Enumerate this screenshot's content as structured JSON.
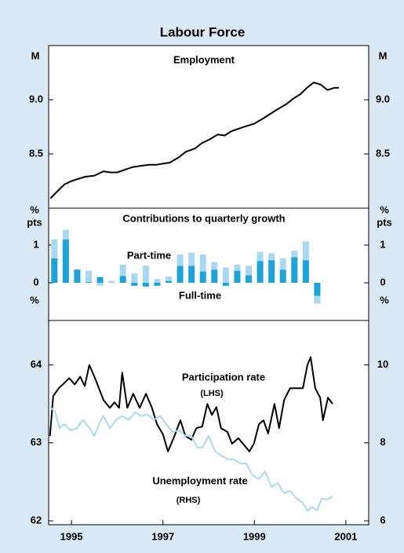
{
  "title": "Labour Force",
  "chart_data": [
    {
      "type": "line",
      "title": "Employment",
      "ylabel": "M",
      "ylim": [
        8.0,
        9.5
      ],
      "yticks": [
        8.5,
        {
          "value": 9,
          "label": "9.0"
        }
      ],
      "series": [
        {
          "color": "#000000",
          "x": [
            1994.54,
            1994.7,
            1994.85,
            1995.0,
            1995.15,
            1995.3,
            1995.5,
            1995.7,
            1995.85,
            1996.0,
            1996.2,
            1996.35,
            1996.5,
            1996.7,
            1996.85,
            1997.0,
            1997.15,
            1997.35,
            1997.5,
            1997.7,
            1997.85,
            1998.0,
            1998.2,
            1998.35,
            1998.5,
            1998.7,
            1998.85,
            1999.0,
            1999.2,
            1999.35,
            1999.5,
            1999.7,
            1999.85,
            2000.0,
            2000.15,
            2000.3,
            2000.45,
            2000.6,
            2000.75,
            2000.85
          ],
          "values": [
            8.09,
            8.16,
            8.22,
            8.25,
            8.27,
            8.29,
            8.3,
            8.34,
            8.33,
            8.33,
            8.36,
            8.38,
            8.39,
            8.4,
            8.4,
            8.41,
            8.42,
            8.47,
            8.52,
            8.55,
            8.6,
            8.63,
            8.68,
            8.67,
            8.71,
            8.74,
            8.76,
            8.78,
            8.83,
            8.87,
            8.91,
            8.96,
            9.01,
            9.05,
            9.11,
            9.16,
            9.14,
            9.09,
            9.11,
            9.11
          ]
        }
      ]
    },
    {
      "type": "bar",
      "title": "Contributions to quarterly growth",
      "ylabel": [
        "%",
        "pts"
      ],
      "ylim": [
        -1,
        2
      ],
      "yticks": [
        0,
        1
      ],
      "stacked": true,
      "x": [
        1994.625,
        1994.875,
        1995.125,
        1995.375,
        1995.625,
        1995.875,
        1996.125,
        1996.375,
        1996.625,
        1996.875,
        1997.125,
        1997.375,
        1997.625,
        1997.875,
        1998.125,
        1998.375,
        1998.625,
        1998.875,
        1999.125,
        1999.375,
        1999.625,
        1999.875,
        2000.125,
        2000.375
      ],
      "series": [
        {
          "name": "Full-time",
          "color": "#1ba3dc",
          "values": [
            0.65,
            1.15,
            0.35,
            0.02,
            0.15,
            0,
            0.18,
            -0.08,
            -0.1,
            -0.08,
            0.05,
            0.45,
            0.45,
            0.3,
            0.35,
            -0.08,
            0.32,
            0.2,
            0.58,
            0.6,
            0.35,
            0.68,
            0.6,
            -0.35
          ]
        },
        {
          "name": "Part-time",
          "color": "#a9d9f2",
          "values": [
            0.5,
            0.25,
            0,
            0.3,
            -0.08,
            0.05,
            0.3,
            0.25,
            0.45,
            0.1,
            0.12,
            0.3,
            0.35,
            0.45,
            0.2,
            0.4,
            0.16,
            0.25,
            0.24,
            0.18,
            0.3,
            0.17,
            0.5,
            -0.2
          ]
        }
      ]
    },
    {
      "type": "line",
      "ylabel": "%",
      "xlim": [
        1994.5,
        2001.5
      ],
      "xticks": [
        1995,
        1997,
        1999,
        2001
      ],
      "ylim": [
        61.95,
        64.55
      ],
      "yticks": [
        62,
        63,
        64
      ],
      "y2lim": [
        5.9,
        11.1
      ],
      "y2ticks": [
        6,
        8,
        10
      ],
      "series": [
        {
          "name": "Participation rate",
          "side": "(LHS)",
          "color": "#000000",
          "x": [
            1994.53,
            1994.6,
            1994.72,
            1994.81,
            1994.95,
            1995.07,
            1995.19,
            1995.29,
            1995.39,
            1995.5,
            1995.6,
            1995.7,
            1995.84,
            1995.94,
            1996.04,
            1996.11,
            1996.22,
            1996.35,
            1996.49,
            1996.63,
            1996.76,
            1996.87,
            1997.0,
            1997.11,
            1997.24,
            1997.38,
            1997.49,
            1997.62,
            1997.73,
            1997.86,
            1997.97,
            1998.07,
            1998.17,
            1998.27,
            1998.41,
            1998.51,
            1998.65,
            1998.75,
            1998.89,
            1998.99,
            1999.1,
            1999.2,
            1999.3,
            1999.44,
            1999.54,
            1999.65,
            1999.78,
            1999.92,
            2000.06,
            2000.16,
            2000.23,
            2000.33,
            2000.44,
            2000.5,
            2000.61,
            2000.71
          ],
          "values": [
            63.09,
            63.6,
            63.7,
            63.75,
            63.83,
            63.75,
            63.85,
            63.73,
            64.0,
            63.85,
            63.7,
            63.55,
            63.45,
            63.52,
            63.45,
            63.9,
            63.45,
            63.63,
            63.45,
            63.63,
            63.45,
            63.24,
            63.11,
            62.89,
            63.07,
            63.29,
            63.09,
            63.04,
            63.19,
            63.21,
            63.5,
            63.36,
            63.46,
            63.19,
            63.14,
            62.99,
            63.06,
            62.99,
            62.89,
            62.99,
            63.24,
            63.29,
            63.12,
            63.5,
            63.19,
            63.55,
            63.7,
            63.7,
            63.7,
            64.0,
            64.1,
            63.7,
            63.58,
            63.29,
            63.58,
            63.5
          ]
        },
        {
          "name": "Unemployment rate",
          "side": "(RHS)",
          "color": "#a9d9f2",
          "axis": "y2",
          "x": [
            1994.53,
            1994.64,
            1994.74,
            1994.84,
            1994.98,
            1995.12,
            1995.25,
            1995.39,
            1995.5,
            1995.6,
            1995.7,
            1995.84,
            1995.98,
            1996.11,
            1996.25,
            1996.39,
            1996.52,
            1996.66,
            1996.8,
            1996.94,
            1997.07,
            1997.21,
            1997.35,
            1997.49,
            1997.62,
            1997.76,
            1997.86,
            1998.0,
            1998.14,
            1998.27,
            1998.41,
            1998.55,
            1998.69,
            1998.82,
            1998.96,
            1999.1,
            1999.23,
            1999.37,
            1999.51,
            1999.65,
            1999.78,
            1999.92,
            2000.06,
            2000.16,
            2000.26,
            2000.37,
            2000.47,
            2000.61,
            2000.71
          ],
          "values": [
            8.93,
            8.79,
            8.38,
            8.48,
            8.32,
            8.38,
            8.59,
            8.38,
            8.18,
            8.48,
            8.69,
            8.38,
            8.59,
            8.69,
            8.59,
            8.79,
            8.69,
            8.73,
            8.59,
            8.69,
            8.48,
            8.28,
            8.32,
            8.18,
            8.18,
            7.88,
            7.88,
            8.18,
            7.78,
            7.68,
            7.58,
            7.58,
            7.47,
            7.47,
            7.17,
            7.07,
            7.27,
            6.87,
            6.97,
            6.71,
            6.77,
            6.57,
            6.46,
            6.26,
            6.36,
            6.26,
            6.57,
            6.55,
            6.63
          ]
        }
      ]
    }
  ]
}
